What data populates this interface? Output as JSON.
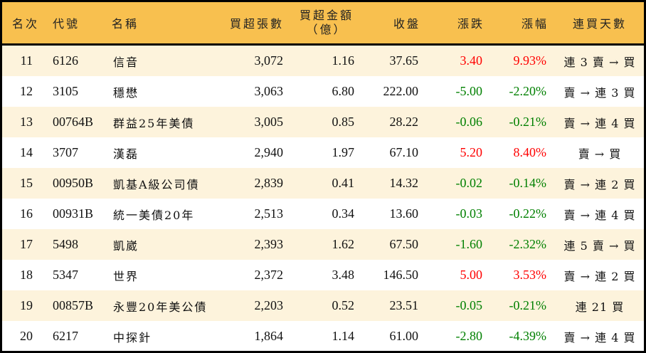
{
  "colors": {
    "header_bg": "#f8c04f",
    "stripe_bg": "#fdf3dc",
    "up": "#ff0000",
    "down": "#008000"
  },
  "headers": {
    "rank": "名次",
    "code": "代號",
    "name": "名稱",
    "buy_lots": "買超張數",
    "buy_amount_1": "買超金額",
    "buy_amount_2": "（億）",
    "close": "收盤",
    "change": "漲跌",
    "pct": "漲幅",
    "streak": "連買天數"
  },
  "rows": [
    {
      "rank": "11",
      "code": "6126",
      "name": "信音",
      "lots": "3,072",
      "amount": "1.16",
      "close": "37.65",
      "change": "3.40",
      "pct": "9.93%",
      "dir": "up",
      "streak": "連 3 賣 → 買"
    },
    {
      "rank": "12",
      "code": "3105",
      "name": "穩懋",
      "lots": "3,063",
      "amount": "6.80",
      "close": "222.00",
      "change": "-5.00",
      "pct": "-2.20%",
      "dir": "down",
      "streak": "賣 → 連 3 買"
    },
    {
      "rank": "13",
      "code": "00764B",
      "name": "群益25年美債",
      "lots": "3,005",
      "amount": "0.85",
      "close": "28.22",
      "change": "-0.06",
      "pct": "-0.21%",
      "dir": "down",
      "streak": "賣 → 連 4 買"
    },
    {
      "rank": "14",
      "code": "3707",
      "name": "漢磊",
      "lots": "2,940",
      "amount": "1.97",
      "close": "67.10",
      "change": "5.20",
      "pct": "8.40%",
      "dir": "up",
      "streak": "賣 → 買"
    },
    {
      "rank": "15",
      "code": "00950B",
      "name": "凱基A級公司債",
      "lots": "2,839",
      "amount": "0.41",
      "close": "14.32",
      "change": "-0.02",
      "pct": "-0.14%",
      "dir": "down",
      "streak": "賣 → 連 2 買"
    },
    {
      "rank": "16",
      "code": "00931B",
      "name": "統一美債20年",
      "lots": "2,513",
      "amount": "0.34",
      "close": "13.60",
      "change": "-0.03",
      "pct": "-0.22%",
      "dir": "down",
      "streak": "賣 → 連 4 買"
    },
    {
      "rank": "17",
      "code": "5498",
      "name": "凱崴",
      "lots": "2,393",
      "amount": "1.62",
      "close": "67.50",
      "change": "-1.60",
      "pct": "-2.32%",
      "dir": "down",
      "streak": "連 5 賣 → 買"
    },
    {
      "rank": "18",
      "code": "5347",
      "name": "世界",
      "lots": "2,372",
      "amount": "3.48",
      "close": "146.50",
      "change": "5.00",
      "pct": "3.53%",
      "dir": "up",
      "streak": "賣 → 連 2 買"
    },
    {
      "rank": "19",
      "code": "00857B",
      "name": "永豐20年美公債",
      "lots": "2,203",
      "amount": "0.52",
      "close": "23.51",
      "change": "-0.05",
      "pct": "-0.21%",
      "dir": "down",
      "streak": "連 21 買"
    },
    {
      "rank": "20",
      "code": "6217",
      "name": "中探針",
      "lots": "1,864",
      "amount": "1.14",
      "close": "61.00",
      "change": "-2.80",
      "pct": "-4.39%",
      "dir": "down",
      "streak": "賣 → 連 4 買"
    }
  ]
}
